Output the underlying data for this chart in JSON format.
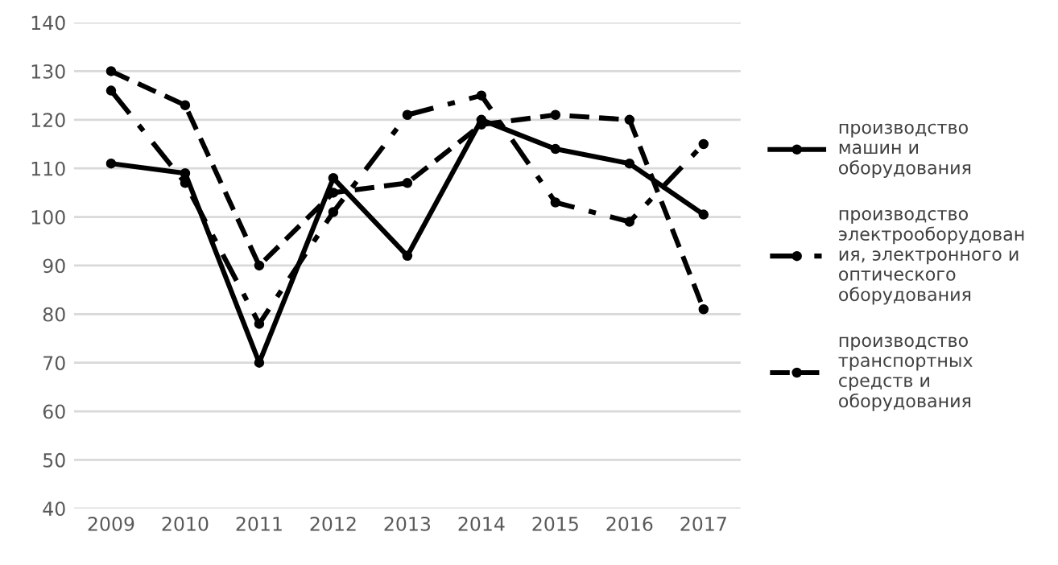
{
  "chart_data": {
    "type": "line",
    "categories": [
      "2009",
      "2010",
      "2011",
      "2012",
      "2013",
      "2014",
      "2015",
      "2016",
      "2017"
    ],
    "series": [
      {
        "name": "производство\nмашин и\nоборудования",
        "color": "#000000",
        "line_style": "solid",
        "values": [
          111,
          109,
          70,
          108,
          92,
          120,
          114,
          111,
          100.5
        ]
      },
      {
        "name": "производство\nэлектрооборудован\nия, электронного и\nоптического\nоборудования",
        "color": "#000000",
        "line_style": "dashdot",
        "values": [
          126,
          107,
          78,
          101,
          121,
          125,
          103,
          99,
          115
        ]
      },
      {
        "name": "производство\nтранспортных\nсредств и\nоборудования",
        "color": "#000000",
        "line_style": "dashed",
        "values": [
          130,
          123,
          90,
          105,
          107,
          119,
          121,
          120,
          81
        ]
      }
    ],
    "ylim": [
      40,
      140
    ],
    "yticks": [
      40,
      50,
      60,
      70,
      80,
      90,
      100,
      110,
      120,
      130,
      140
    ],
    "grid": "y",
    "legend": "right",
    "marker": "circle"
  }
}
